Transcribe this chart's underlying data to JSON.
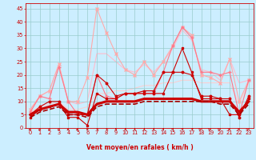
{
  "xlabel": "Vent moyen/en rafales ( km/h )",
  "bg_color": "#cceeff",
  "grid_color": "#99cccc",
  "x": [
    0,
    1,
    2,
    3,
    4,
    5,
    6,
    7,
    8,
    9,
    10,
    11,
    12,
    13,
    14,
    15,
    16,
    17,
    18,
    19,
    20,
    21,
    22,
    23
  ],
  "lines": [
    {
      "y": [
        7,
        12,
        14,
        24,
        10,
        9,
        10,
        28,
        28,
        25,
        22,
        21,
        24,
        21,
        25,
        30,
        37,
        33,
        22,
        21,
        18,
        26,
        17,
        18
      ],
      "color": "#ffbbcc",
      "lw": 0.8,
      "marker": "None",
      "ms": 0,
      "zorder": 1
    },
    {
      "y": [
        7,
        12,
        14,
        24,
        10,
        10,
        19,
        45,
        36,
        28,
        22,
        20,
        25,
        20,
        25,
        31,
        38,
        35,
        20,
        19,
        17,
        26,
        10,
        18
      ],
      "color": "#ffaaaa",
      "lw": 0.8,
      "marker": "x",
      "ms": 2.5,
      "zorder": 2
    },
    {
      "y": [
        6,
        12,
        11,
        23,
        10,
        5,
        5,
        20,
        12,
        11,
        13,
        13,
        13,
        13,
        21,
        31,
        38,
        34,
        21,
        21,
        20,
        21,
        5,
        18
      ],
      "color": "#ff7788",
      "lw": 0.8,
      "marker": "+",
      "ms": 3.0,
      "zorder": 3
    },
    {
      "y": [
        4,
        7,
        8,
        9,
        4,
        4,
        1,
        13,
        11,
        11,
        13,
        13,
        13,
        13,
        13,
        21,
        30,
        21,
        11,
        11,
        11,
        5,
        5,
        11
      ],
      "color": "#cc0000",
      "lw": 0.8,
      "marker": "s",
      "ms": 1.8,
      "zorder": 5
    },
    {
      "y": [
        5,
        8,
        10,
        10,
        5,
        5,
        5,
        20,
        17,
        12,
        13,
        13,
        14,
        14,
        21,
        21,
        21,
        20,
        12,
        12,
        11,
        11,
        4,
        12
      ],
      "color": "#cc0000",
      "lw": 0.8,
      "marker": "o",
      "ms": 1.8,
      "zorder": 4
    },
    {
      "y": [
        5,
        7,
        8,
        9,
        6,
        6,
        5,
        9,
        10,
        10,
        10,
        10,
        11,
        11,
        11,
        11,
        11,
        11,
        10,
        10,
        10,
        10,
        6,
        10
      ],
      "color": "#cc0000",
      "lw": 2.2,
      "marker": "None",
      "ms": 0,
      "zorder": 6
    },
    {
      "y": [
        4,
        6,
        7,
        8,
        5,
        5,
        4,
        8,
        9,
        9,
        9,
        9,
        10,
        10,
        10,
        10,
        10,
        10,
        10,
        10,
        9,
        9,
        5,
        9
      ],
      "color": "#aa0000",
      "lw": 1.2,
      "marker": "None",
      "ms": 0,
      "ls": "--",
      "zorder": 6
    },
    {
      "y": [
        6,
        8,
        9,
        10,
        7,
        7,
        8,
        13,
        13,
        14,
        14,
        15,
        16,
        16,
        17,
        17,
        18,
        18,
        17,
        17,
        17,
        17,
        9,
        17
      ],
      "color": "#ffcccc",
      "lw": 0.7,
      "marker": "None",
      "ms": 0,
      "zorder": 0
    }
  ],
  "arrow_angles": [
    225,
    215,
    210,
    210,
    215,
    225,
    190,
    270,
    270,
    0,
    0,
    0,
    0,
    0,
    10,
    20,
    30,
    40,
    50,
    50,
    50,
    80,
    90,
    50
  ],
  "ylim": [
    0,
    47
  ],
  "yticks": [
    0,
    5,
    10,
    15,
    20,
    25,
    30,
    35,
    40,
    45
  ],
  "xticks": [
    0,
    1,
    2,
    3,
    4,
    5,
    6,
    7,
    8,
    9,
    10,
    11,
    12,
    13,
    14,
    15,
    16,
    17,
    18,
    19,
    20,
    21,
    22,
    23
  ],
  "label_fontsize": 5.5,
  "tick_fontsize": 4.8
}
